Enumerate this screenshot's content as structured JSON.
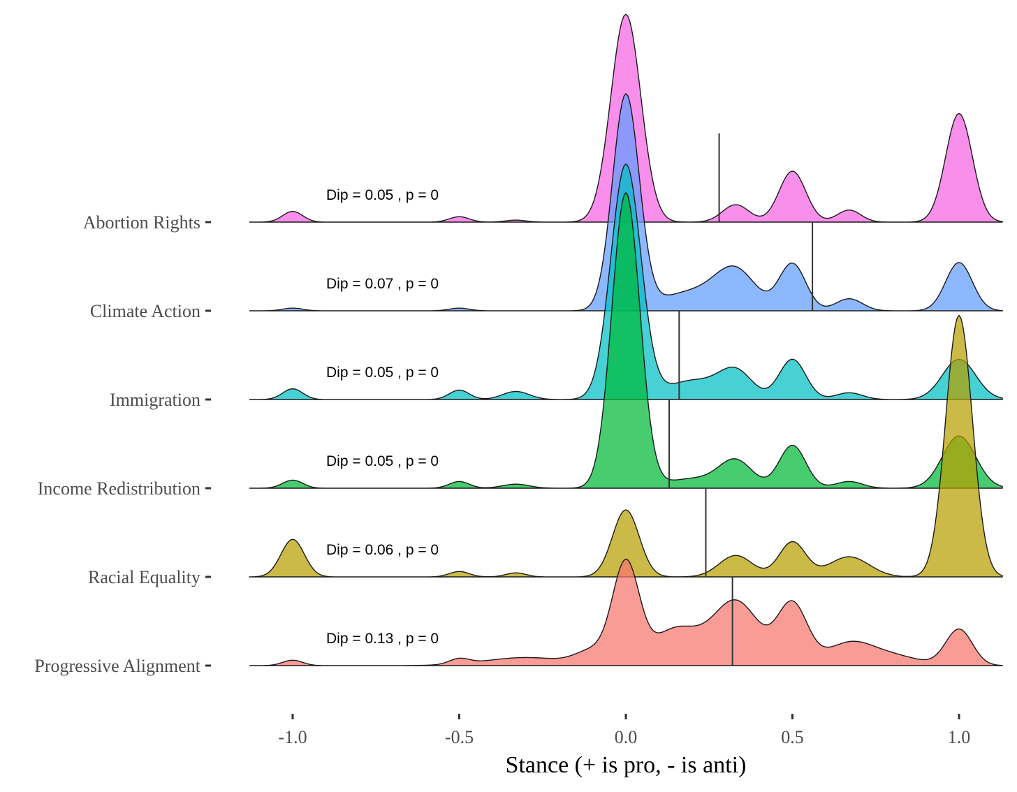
{
  "chart_data": {
    "type": "area",
    "subtype": "ridgeline-density",
    "title": "",
    "xlabel": "Stance (+ is pro, - is anti)",
    "ylabel": "",
    "xlim": [
      -1.13,
      1.13
    ],
    "x_ticks": [
      -1.0,
      -0.5,
      0.0,
      0.5,
      1.0
    ],
    "x_tick_labels": [
      "-1.0",
      "-0.5",
      "0.0",
      "0.5",
      "1.0"
    ],
    "grid": false,
    "legend": "none",
    "series": [
      {
        "name": "Abortion Rights",
        "color": "#F564E3",
        "annotation": "Dip = 0.05 , p = 0",
        "median": 0.28,
        "density_peaks": [
          {
            "x": -1.0,
            "h": 0.08,
            "w": 0.03
          },
          {
            "x": -0.5,
            "h": 0.04,
            "w": 0.03
          },
          {
            "x": -0.33,
            "h": 0.015,
            "w": 0.03
          },
          {
            "x": 0.0,
            "h": 1.55,
            "w": 0.045
          },
          {
            "x": 0.33,
            "h": 0.13,
            "w": 0.04
          },
          {
            "x": 0.5,
            "h": 0.38,
            "w": 0.04
          },
          {
            "x": 0.67,
            "h": 0.09,
            "w": 0.035
          },
          {
            "x": 1.0,
            "h": 0.81,
            "w": 0.04
          }
        ]
      },
      {
        "name": "Climate Action",
        "color": "#619CFF",
        "annotation": "Dip = 0.07 , p = 0",
        "median": 0.56,
        "density_peaks": [
          {
            "x": -1.0,
            "h": 0.02,
            "w": 0.03
          },
          {
            "x": -0.5,
            "h": 0.02,
            "w": 0.03
          },
          {
            "x": 0.0,
            "h": 1.6,
            "w": 0.04
          },
          {
            "x": 0.2,
            "h": 0.14,
            "w": 0.1
          },
          {
            "x": 0.33,
            "h": 0.27,
            "w": 0.06
          },
          {
            "x": 0.5,
            "h": 0.35,
            "w": 0.04
          },
          {
            "x": 0.67,
            "h": 0.09,
            "w": 0.04
          },
          {
            "x": 1.0,
            "h": 0.36,
            "w": 0.04
          }
        ]
      },
      {
        "name": "Immigration",
        "color": "#00BFC4",
        "annotation": "Dip = 0.05 , p = 0",
        "median": 0.16,
        "density_peaks": [
          {
            "x": -1.0,
            "h": 0.08,
            "w": 0.03
          },
          {
            "x": -0.5,
            "h": 0.07,
            "w": 0.03
          },
          {
            "x": -0.33,
            "h": 0.06,
            "w": 0.04
          },
          {
            "x": 0.0,
            "h": 1.75,
            "w": 0.045
          },
          {
            "x": 0.2,
            "h": 0.14,
            "w": 0.08
          },
          {
            "x": 0.33,
            "h": 0.2,
            "w": 0.05
          },
          {
            "x": 0.5,
            "h": 0.3,
            "w": 0.04
          },
          {
            "x": 0.67,
            "h": 0.05,
            "w": 0.04
          },
          {
            "x": 1.0,
            "h": 0.3,
            "w": 0.05
          }
        ]
      },
      {
        "name": "Income Redistribution",
        "color": "#00BA38",
        "annotation": "Dip = 0.05 , p = 0",
        "median": 0.13,
        "density_peaks": [
          {
            "x": -1.0,
            "h": 0.06,
            "w": 0.03
          },
          {
            "x": -0.5,
            "h": 0.05,
            "w": 0.03
          },
          {
            "x": -0.33,
            "h": 0.03,
            "w": 0.04
          },
          {
            "x": 0.0,
            "h": 2.2,
            "w": 0.042
          },
          {
            "x": 0.2,
            "h": 0.07,
            "w": 0.08
          },
          {
            "x": 0.33,
            "h": 0.2,
            "w": 0.05
          },
          {
            "x": 0.5,
            "h": 0.32,
            "w": 0.04
          },
          {
            "x": 0.67,
            "h": 0.05,
            "w": 0.04
          },
          {
            "x": 1.0,
            "h": 0.39,
            "w": 0.05
          }
        ]
      },
      {
        "name": "Racial Equality",
        "color": "#B79F00",
        "annotation": "Dip = 0.06 , p = 0",
        "median": 0.24,
        "density_peaks": [
          {
            "x": -1.0,
            "h": 0.28,
            "w": 0.035
          },
          {
            "x": -0.5,
            "h": 0.04,
            "w": 0.03
          },
          {
            "x": -0.33,
            "h": 0.03,
            "w": 0.03
          },
          {
            "x": 0.0,
            "h": 0.5,
            "w": 0.04
          },
          {
            "x": 0.33,
            "h": 0.16,
            "w": 0.05
          },
          {
            "x": 0.5,
            "h": 0.26,
            "w": 0.04
          },
          {
            "x": 0.67,
            "h": 0.15,
            "w": 0.06
          },
          {
            "x": 1.0,
            "h": 1.95,
            "w": 0.04
          }
        ]
      },
      {
        "name": "Progressive Alignment",
        "color": "#F8766D",
        "annotation": "Dip = 0.13 , p = 0",
        "median": 0.32,
        "density_peaks": [
          {
            "x": -1.0,
            "h": 0.04,
            "w": 0.03
          },
          {
            "x": -0.5,
            "h": 0.04,
            "w": 0.03
          },
          {
            "x": -0.3,
            "h": 0.06,
            "w": 0.12
          },
          {
            "x": -0.1,
            "h": 0.1,
            "w": 0.05
          },
          {
            "x": 0.0,
            "h": 0.75,
            "w": 0.04
          },
          {
            "x": 0.15,
            "h": 0.27,
            "w": 0.07
          },
          {
            "x": 0.33,
            "h": 0.48,
            "w": 0.07
          },
          {
            "x": 0.5,
            "h": 0.45,
            "w": 0.045
          },
          {
            "x": 0.67,
            "h": 0.16,
            "w": 0.07
          },
          {
            "x": 0.8,
            "h": 0.07,
            "w": 0.08
          },
          {
            "x": 1.0,
            "h": 0.27,
            "w": 0.04
          }
        ]
      }
    ]
  }
}
